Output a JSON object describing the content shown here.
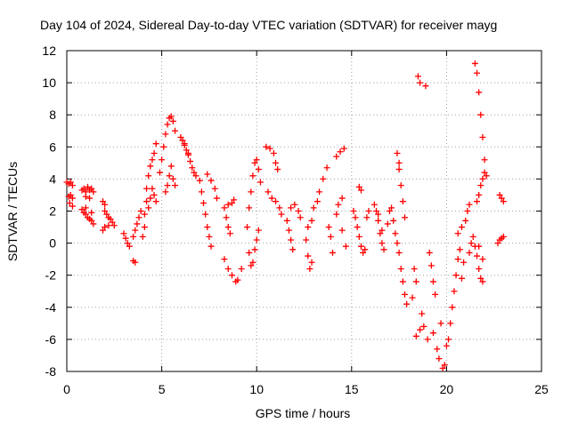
{
  "chart_data": {
    "type": "scatter",
    "title": "Day 104 of 2024, Sidereal Day-to-day VTEC variation (SDTVAR) for receiver mayg",
    "xlabel": "GPS time / hours",
    "ylabel": "SDTVAR / TECUs",
    "xlim": [
      0,
      25
    ],
    "ylim": [
      -8,
      12
    ],
    "xticks": [
      0,
      5,
      10,
      15,
      20,
      25
    ],
    "yticks": [
      -8,
      -6,
      -4,
      -2,
      0,
      2,
      4,
      6,
      8,
      10,
      12
    ],
    "grid": true,
    "marker": "+",
    "marker_color": "#ff0000",
    "series": [
      {
        "name": "SDTVAR",
        "points": [
          [
            0.0,
            3.8
          ],
          [
            0.1,
            3.7
          ],
          [
            0.2,
            3.8
          ],
          [
            0.3,
            3.6
          ],
          [
            0.1,
            2.9
          ],
          [
            0.2,
            3.0
          ],
          [
            0.3,
            2.8
          ],
          [
            0.15,
            2.5
          ],
          [
            0.3,
            2.3
          ],
          [
            0.8,
            3.3
          ],
          [
            0.9,
            3.4
          ],
          [
            1.0,
            3.2
          ],
          [
            1.1,
            3.5
          ],
          [
            1.2,
            3.3
          ],
          [
            1.3,
            3.4
          ],
          [
            1.4,
            3.2
          ],
          [
            1.0,
            2.9
          ],
          [
            1.2,
            2.8
          ],
          [
            0.8,
            2.1
          ],
          [
            0.9,
            1.9
          ],
          [
            1.0,
            1.8
          ],
          [
            1.1,
            1.6
          ],
          [
            1.2,
            1.5
          ],
          [
            1.3,
            1.4
          ],
          [
            1.4,
            1.2
          ],
          [
            1.0,
            2.2
          ],
          [
            1.3,
            1.9
          ],
          [
            1.9,
            2.6
          ],
          [
            2.0,
            2.4
          ],
          [
            2.0,
            2.0
          ],
          [
            2.1,
            1.8
          ],
          [
            2.2,
            1.6
          ],
          [
            2.3,
            1.5
          ],
          [
            2.4,
            1.3
          ],
          [
            2.5,
            1.1
          ],
          [
            2.2,
            1.1
          ],
          [
            2.0,
            1.0
          ],
          [
            1.9,
            0.8
          ],
          [
            3.0,
            0.6
          ],
          [
            3.1,
            0.3
          ],
          [
            3.2,
            0.0
          ],
          [
            3.3,
            -0.2
          ],
          [
            3.5,
            0.4
          ],
          [
            3.6,
            0.8
          ],
          [
            3.7,
            1.2
          ],
          [
            3.8,
            1.6
          ],
          [
            3.9,
            2.0
          ],
          [
            3.5,
            -1.1
          ],
          [
            3.6,
            -1.2
          ],
          [
            4.0,
            0.4
          ],
          [
            4.1,
            1.0
          ],
          [
            4.1,
            1.8
          ],
          [
            4.2,
            2.6
          ],
          [
            4.2,
            3.4
          ],
          [
            4.3,
            4.2
          ],
          [
            4.4,
            4.8
          ],
          [
            4.5,
            5.2
          ],
          [
            4.6,
            5.6
          ],
          [
            4.7,
            6.2
          ],
          [
            4.3,
            2.2
          ],
          [
            4.4,
            2.8
          ],
          [
            4.5,
            3.4
          ],
          [
            4.6,
            3.0
          ],
          [
            4.7,
            2.6
          ],
          [
            4.9,
            4.4
          ],
          [
            5.0,
            5.2
          ],
          [
            5.1,
            6.0
          ],
          [
            5.2,
            6.8
          ],
          [
            5.3,
            7.4
          ],
          [
            5.4,
            7.8
          ],
          [
            5.5,
            7.9
          ],
          [
            5.6,
            7.6
          ],
          [
            5.7,
            7.0
          ],
          [
            5.2,
            3.2
          ],
          [
            5.3,
            3.6
          ],
          [
            5.4,
            4.2
          ],
          [
            5.5,
            4.8
          ],
          [
            5.6,
            4.0
          ],
          [
            5.7,
            3.6
          ],
          [
            6.0,
            6.6
          ],
          [
            6.1,
            6.4
          ],
          [
            6.2,
            6.1
          ],
          [
            6.3,
            5.8
          ],
          [
            6.4,
            5.5
          ],
          [
            6.5,
            5.1
          ],
          [
            6.6,
            4.7
          ],
          [
            6.7,
            4.4
          ],
          [
            6.8,
            4.2
          ],
          [
            6.2,
            6.2
          ],
          [
            6.4,
            5.6
          ],
          [
            7.0,
            3.9
          ],
          [
            7.1,
            3.2
          ],
          [
            7.2,
            2.5
          ],
          [
            7.3,
            1.8
          ],
          [
            7.4,
            1.0
          ],
          [
            7.5,
            0.4
          ],
          [
            7.6,
            -0.2
          ],
          [
            7.4,
            4.3
          ],
          [
            7.6,
            3.9
          ],
          [
            7.8,
            3.4
          ],
          [
            7.9,
            2.8
          ],
          [
            8.3,
            2.2
          ],
          [
            8.4,
            1.6
          ],
          [
            8.5,
            1.0
          ],
          [
            8.6,
            0.6
          ],
          [
            8.5,
            2.4
          ],
          [
            8.7,
            2.5
          ],
          [
            8.8,
            2.7
          ],
          [
            8.3,
            -1.0
          ],
          [
            8.5,
            -1.6
          ],
          [
            8.7,
            -2.0
          ],
          [
            8.9,
            -2.4
          ],
          [
            9.0,
            -2.3
          ],
          [
            9.2,
            -1.6
          ],
          [
            9.5,
            1.0
          ],
          [
            9.6,
            2.2
          ],
          [
            9.7,
            3.2
          ],
          [
            9.8,
            4.2
          ],
          [
            9.9,
            5.0
          ],
          [
            10.0,
            5.2
          ],
          [
            10.1,
            4.6
          ],
          [
            10.2,
            3.8
          ],
          [
            9.6,
            -0.6
          ],
          [
            9.7,
            -1.4
          ],
          [
            9.8,
            -1.2
          ],
          [
            9.9,
            -0.4
          ],
          [
            10.0,
            0.2
          ],
          [
            10.1,
            0.8
          ],
          [
            10.5,
            6.0
          ],
          [
            10.7,
            5.9
          ],
          [
            10.9,
            5.6
          ],
          [
            11.0,
            5.0
          ],
          [
            11.1,
            4.6
          ],
          [
            10.6,
            3.2
          ],
          [
            10.8,
            2.8
          ],
          [
            11.0,
            2.6
          ],
          [
            11.2,
            2.2
          ],
          [
            11.3,
            1.8
          ],
          [
            11.6,
            1.4
          ],
          [
            11.7,
            0.8
          ],
          [
            11.8,
            0.2
          ],
          [
            11.9,
            -0.4
          ],
          [
            11.8,
            2.2
          ],
          [
            12.0,
            2.4
          ],
          [
            12.2,
            2.0
          ],
          [
            12.3,
            1.6
          ],
          [
            12.6,
            0.2
          ],
          [
            12.7,
            -0.8
          ],
          [
            12.8,
            -1.6
          ],
          [
            12.9,
            -1.2
          ],
          [
            12.7,
            1.0
          ],
          [
            12.9,
            1.4
          ],
          [
            13.0,
            2.2
          ],
          [
            13.2,
            2.6
          ],
          [
            13.3,
            3.2
          ],
          [
            13.5,
            4.0
          ],
          [
            13.7,
            4.7
          ],
          [
            13.8,
            1.0
          ],
          [
            13.9,
            0.4
          ],
          [
            14.0,
            -0.6
          ],
          [
            14.2,
            1.8
          ],
          [
            14.3,
            2.4
          ],
          [
            14.5,
            2.8
          ],
          [
            14.2,
            5.4
          ],
          [
            14.4,
            5.7
          ],
          [
            14.6,
            5.9
          ],
          [
            14.5,
            0.8
          ],
          [
            14.7,
            -0.2
          ],
          [
            15.1,
            2.0
          ],
          [
            15.2,
            1.6
          ],
          [
            15.3,
            1.0
          ],
          [
            15.4,
            0.4
          ],
          [
            15.5,
            -0.2
          ],
          [
            15.6,
            -0.6
          ],
          [
            15.7,
            -0.4
          ],
          [
            15.4,
            3.5
          ],
          [
            15.5,
            3.3
          ],
          [
            15.8,
            1.6
          ],
          [
            15.9,
            2.0
          ],
          [
            16.2,
            2.4
          ],
          [
            16.3,
            2.0
          ],
          [
            16.4,
            1.4
          ],
          [
            16.5,
            0.6
          ],
          [
            16.6,
            0.0
          ],
          [
            16.7,
            -0.4
          ],
          [
            16.4,
            1.8
          ],
          [
            16.6,
            0.8
          ],
          [
            16.9,
            1.2
          ],
          [
            17.0,
            2.0
          ],
          [
            17.1,
            2.2
          ],
          [
            17.2,
            1.4
          ],
          [
            17.3,
            0.6
          ],
          [
            17.4,
            0.0
          ],
          [
            17.5,
            -0.6
          ],
          [
            17.6,
            -1.6
          ],
          [
            17.7,
            -2.4
          ],
          [
            17.8,
            -3.2
          ],
          [
            17.9,
            -3.8
          ],
          [
            17.4,
            5.6
          ],
          [
            17.5,
            4.6
          ],
          [
            17.6,
            3.6
          ],
          [
            17.7,
            2.6
          ],
          [
            17.8,
            1.6
          ],
          [
            17.5,
            5.0
          ],
          [
            18.3,
            -1.6
          ],
          [
            18.4,
            -2.4
          ],
          [
            18.2,
            -3.4
          ],
          [
            18.5,
            10.4
          ],
          [
            18.6,
            10.0
          ],
          [
            18.9,
            9.8
          ],
          [
            18.4,
            -5.8
          ],
          [
            18.6,
            -5.4
          ],
          [
            18.7,
            -4.4
          ],
          [
            18.8,
            -5.2
          ],
          [
            19.0,
            -6.0
          ],
          [
            19.1,
            -0.6
          ],
          [
            19.2,
            -1.4
          ],
          [
            19.3,
            -2.4
          ],
          [
            19.4,
            -3.2
          ],
          [
            19.3,
            -5.6
          ],
          [
            19.5,
            -6.6
          ],
          [
            19.6,
            -7.2
          ],
          [
            19.8,
            -7.8
          ],
          [
            19.9,
            -7.6
          ],
          [
            20.0,
            -6.4
          ],
          [
            20.1,
            -6.0
          ],
          [
            19.7,
            -5.0
          ],
          [
            20.2,
            -5.0
          ],
          [
            20.3,
            -4.0
          ],
          [
            20.4,
            -3.0
          ],
          [
            20.5,
            -2.0
          ],
          [
            20.6,
            -1.0
          ],
          [
            20.7,
            -0.4
          ],
          [
            20.6,
            0.6
          ],
          [
            20.8,
            1.0
          ],
          [
            21.0,
            1.4
          ],
          [
            21.1,
            2.0
          ],
          [
            21.2,
            2.4
          ],
          [
            20.8,
            -2.2
          ],
          [
            20.9,
            -1.2
          ],
          [
            21.2,
            -0.6
          ],
          [
            21.3,
            0.0
          ],
          [
            21.4,
            0.4
          ],
          [
            21.5,
            -0.2
          ],
          [
            21.6,
            -0.8
          ],
          [
            21.7,
            -1.6
          ],
          [
            21.8,
            -2.2
          ],
          [
            21.9,
            -2.4
          ],
          [
            21.7,
            -0.2
          ],
          [
            21.9,
            -1.0
          ],
          [
            21.5,
            11.2
          ],
          [
            21.6,
            10.6
          ],
          [
            21.7,
            9.4
          ],
          [
            21.8,
            8.0
          ],
          [
            21.9,
            6.6
          ],
          [
            22.0,
            5.2
          ],
          [
            22.1,
            4.2
          ],
          [
            21.6,
            2.6
          ],
          [
            21.7,
            3.0
          ],
          [
            21.8,
            3.6
          ],
          [
            21.9,
            4.0
          ],
          [
            22.0,
            4.4
          ],
          [
            22.8,
            3.0
          ],
          [
            22.9,
            2.8
          ],
          [
            23.0,
            2.6
          ],
          [
            22.7,
            0.0
          ],
          [
            22.8,
            0.2
          ],
          [
            22.9,
            0.3
          ],
          [
            23.0,
            0.4
          ]
        ]
      }
    ]
  }
}
